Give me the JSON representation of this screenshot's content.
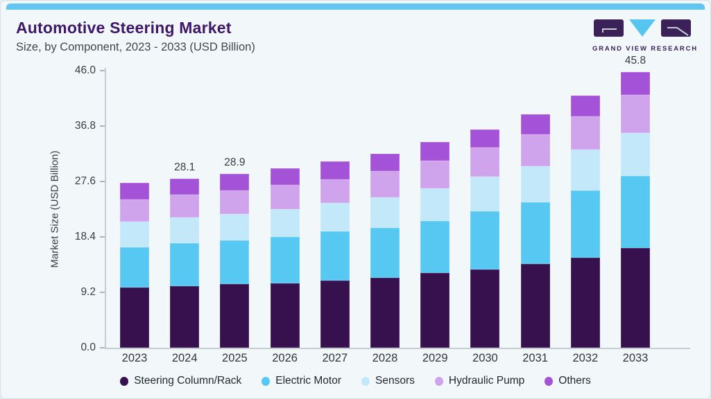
{
  "page": {
    "background": "#F2F7FA",
    "top_strip_color": "#62C6EF"
  },
  "header": {
    "title": "Automotive Steering Market",
    "subtitle": "Size, by Component, 2023 - 2033 (USD Billion)",
    "logo": {
      "text": "GRAND VIEW RESEARCH",
      "purple": "#3A2158",
      "cyan": "#56C5F0"
    }
  },
  "chart_data": {
    "type": "bar",
    "stacked": true,
    "title": "Automotive Steering Market Size, by Component, 2023 - 2033 (USD Billion)",
    "xlabel": "",
    "ylabel": "Market Size (USD Billion)",
    "ylim": [
      0,
      46.0
    ],
    "yticks": [
      "0.0",
      "9.2",
      "18.4",
      "27.6",
      "36.8",
      "46.0"
    ],
    "grid": false,
    "legend_position": "bottom",
    "categories": [
      "2023",
      "2024",
      "2025",
      "2026",
      "2027",
      "2028",
      "2029",
      "2030",
      "2031",
      "2032",
      "2033"
    ],
    "series": [
      {
        "name": "Steering Column/Rack",
        "color": "#36114E",
        "values": [
          10.0,
          10.2,
          10.6,
          10.7,
          11.2,
          11.6,
          12.4,
          13.0,
          13.9,
          15.0,
          16.6
        ]
      },
      {
        "name": "Electric Motor",
        "color": "#57C8F2",
        "values": [
          6.7,
          7.2,
          7.2,
          7.7,
          8.1,
          8.3,
          8.7,
          9.7,
          10.3,
          11.1,
          11.9
        ]
      },
      {
        "name": "Sensors",
        "color": "#C2E8F9",
        "values": [
          4.2,
          4.2,
          4.4,
          4.6,
          4.7,
          5.1,
          5.3,
          5.7,
          5.9,
          6.8,
          7.2
        ]
      },
      {
        "name": "Hydraulic Pump",
        "color": "#CFA4EC",
        "values": [
          3.7,
          3.8,
          3.9,
          4.0,
          4.0,
          4.3,
          4.7,
          4.8,
          5.3,
          5.5,
          6.3
        ]
      },
      {
        "name": "Others",
        "color": "#A453D8",
        "values": [
          2.8,
          2.7,
          2.8,
          2.8,
          2.9,
          2.9,
          3.0,
          3.0,
          3.3,
          3.5,
          3.8
        ]
      }
    ],
    "bar_labels": {
      "2024": "28.1",
      "2025": "28.9",
      "2033": "45.8"
    },
    "totals": [
      27.4,
      28.1,
      28.9,
      29.8,
      30.9,
      32.2,
      34.1,
      36.2,
      38.7,
      41.9,
      45.8
    ]
  }
}
